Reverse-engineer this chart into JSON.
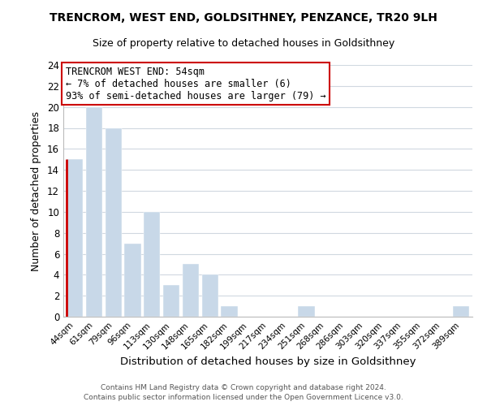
{
  "title": "TRENCROM, WEST END, GOLDSITHNEY, PENZANCE, TR20 9LH",
  "subtitle": "Size of property relative to detached houses in Goldsithney",
  "xlabel": "Distribution of detached houses by size in Goldsithney",
  "ylabel": "Number of detached properties",
  "bar_color": "#c8d8e8",
  "marker_color": "#cc0000",
  "categories": [
    "44sqm",
    "61sqm",
    "79sqm",
    "96sqm",
    "113sqm",
    "130sqm",
    "148sqm",
    "165sqm",
    "182sqm",
    "199sqm",
    "217sqm",
    "234sqm",
    "251sqm",
    "268sqm",
    "286sqm",
    "303sqm",
    "320sqm",
    "337sqm",
    "355sqm",
    "372sqm",
    "389sqm"
  ],
  "values": [
    15,
    20,
    18,
    7,
    10,
    3,
    5,
    4,
    1,
    0,
    0,
    0,
    1,
    0,
    0,
    0,
    0,
    0,
    0,
    0,
    1
  ],
  "ylim": [
    0,
    24
  ],
  "yticks": [
    0,
    2,
    4,
    6,
    8,
    10,
    12,
    14,
    16,
    18,
    20,
    22,
    24
  ],
  "marker_bar_index": 0,
  "annotation_title": "TRENCROM WEST END: 54sqm",
  "annotation_line1": "← 7% of detached houses are smaller (6)",
  "annotation_line2": "93% of semi-detached houses are larger (79) →",
  "footer_line1": "Contains HM Land Registry data © Crown copyright and database right 2024.",
  "footer_line2": "Contains public sector information licensed under the Open Government Licence v3.0.",
  "grid_color": "#d0d8e0",
  "background_color": "#ffffff"
}
